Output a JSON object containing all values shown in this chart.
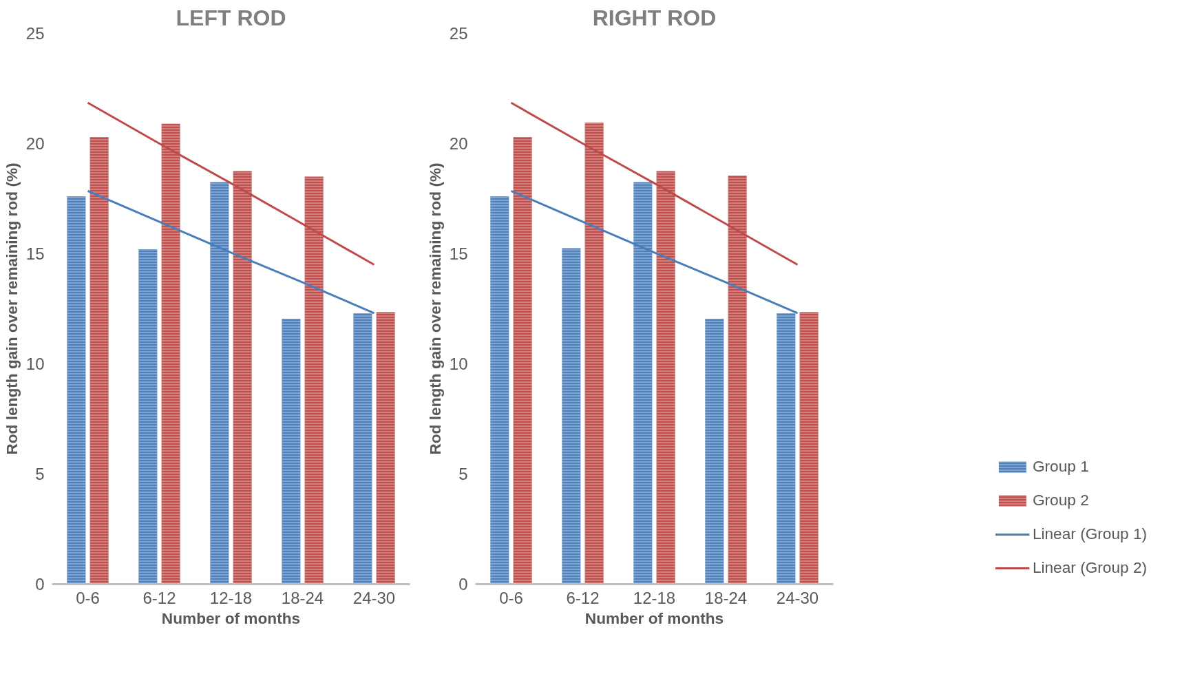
{
  "chart_data": [
    {
      "type": "bar",
      "title": "LEFT ROD",
      "xlabel": "Number of months",
      "ylabel": "Rod length gain over remaining rod (%)",
      "categories": [
        "0-6",
        "6-12",
        "12-18",
        "18-24",
        "24-30"
      ],
      "ylim": [
        0,
        25
      ],
      "yticks": [
        0,
        5,
        10,
        15,
        20,
        25
      ],
      "grid": false,
      "series": [
        {
          "color": "#4f81bd",
          "values": [
            17.6,
            15.2,
            18.25,
            12.05,
            12.3
          ]
        },
        {
          "color": "#c0504d",
          "values": [
            20.3,
            20.9,
            18.75,
            18.5,
            12.35
          ]
        },
        {
          "type": "line",
          "color": "#4a7ebb",
          "values": [
            17.85,
            16.45,
            15.05,
            13.7,
            12.3
          ]
        },
        {
          "type": "line",
          "color": "#be4b48",
          "values": [
            21.85,
            20.0,
            18.2,
            16.35,
            14.5
          ]
        }
      ]
    },
    {
      "type": "bar",
      "title": "RIGHT ROD",
      "xlabel": "Number of months",
      "ylabel": "Rod length gain over remaining rod (%)",
      "categories": [
        "0-6",
        "6-12",
        "12-18",
        "18-24",
        "24-30"
      ],
      "ylim": [
        0,
        25
      ],
      "yticks": [
        0,
        5,
        10,
        15,
        20,
        25
      ],
      "grid": false,
      "legend": "right",
      "series": [
        {
          "name": "Group 1",
          "color": "#4f81bd",
          "values": [
            17.6,
            15.25,
            18.25,
            12.05,
            12.3
          ]
        },
        {
          "name": "Group 2",
          "color": "#c0504d",
          "values": [
            20.3,
            20.95,
            18.75,
            18.55,
            12.35
          ]
        },
        {
          "name": "Linear (Group 1)",
          "type": "line",
          "color": "#4a7ebb",
          "values": [
            17.85,
            16.45,
            15.05,
            13.7,
            12.3
          ]
        },
        {
          "name": "Linear (Group 2)",
          "type": "line",
          "color": "#be4b48",
          "values": [
            21.85,
            20.0,
            18.2,
            16.35,
            14.5
          ]
        }
      ]
    }
  ]
}
